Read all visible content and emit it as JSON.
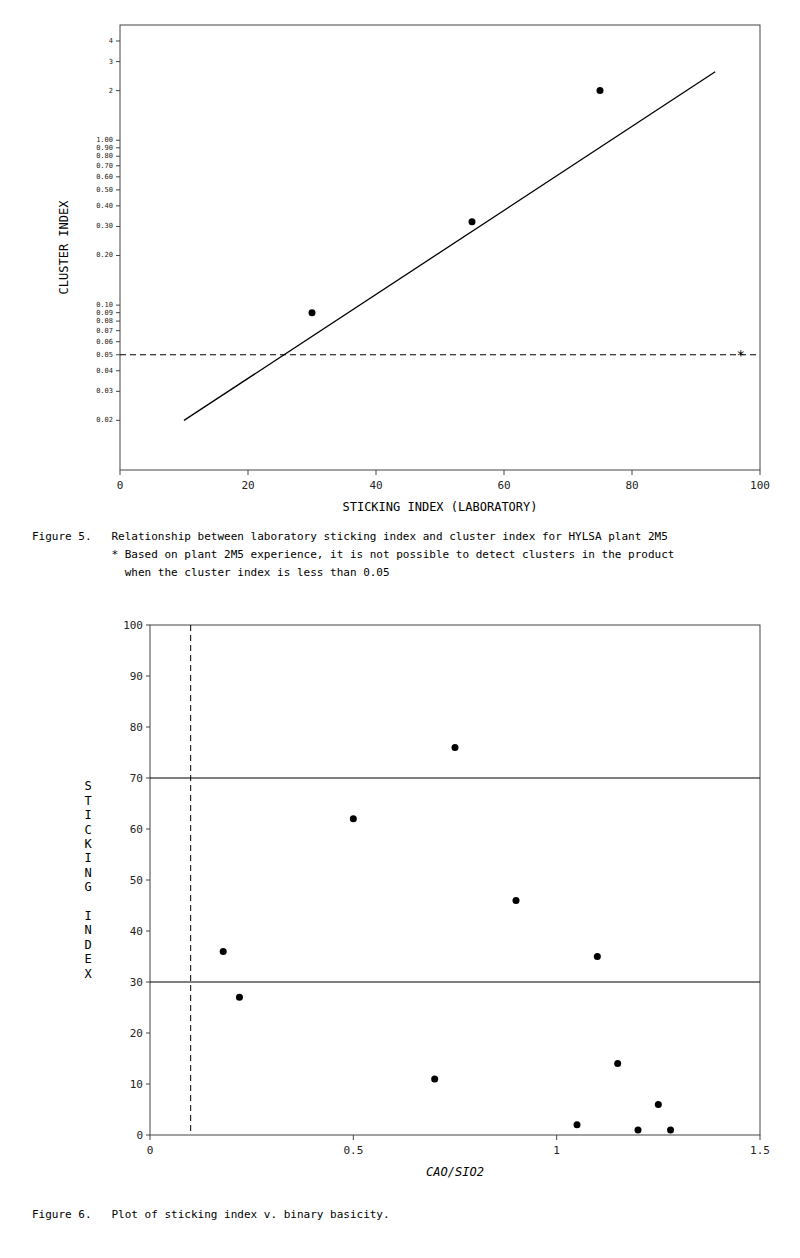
{
  "chart_data": [
    {
      "type": "scatter",
      "xlabel": "STICKING INDEX (LABORATORY)",
      "ylabel": "CLUSTER INDEX",
      "log": "y",
      "xlim": [
        0,
        100
      ],
      "ylim": [
        0.01,
        5.0
      ],
      "xticks": [
        0,
        20,
        40,
        60,
        80,
        100
      ],
      "yticks": [
        4,
        3,
        2,
        {
          "value": 1.0,
          "label": "1.00"
        },
        {
          "value": 0.9,
          "label": "0.90"
        },
        {
          "value": 0.8,
          "label": "0.80"
        },
        {
          "value": 0.7,
          "label": "0.70"
        },
        {
          "value": 0.6,
          "label": "0.60"
        },
        {
          "value": 0.5,
          "label": "0.50"
        },
        {
          "value": 0.4,
          "label": "0.40"
        },
        {
          "value": 0.3,
          "label": "0.30"
        },
        {
          "value": 0.2,
          "label": "0.20"
        },
        {
          "value": 0.1,
          "label": "0.10"
        },
        0.09,
        0.08,
        0.07,
        0.06,
        0.05,
        0.04,
        0.03,
        0.02
      ],
      "series": [
        {
          "type": "scatter",
          "color": "#000000",
          "x": [
            30,
            55,
            75
          ],
          "values": [
            0.09,
            0.32,
            2.0
          ]
        },
        {
          "type": "line",
          "color": "#000000",
          "x": [
            10,
            93
          ],
          "values": [
            0.02,
            2.6
          ]
        }
      ],
      "hlines": [
        {
          "value": 0.05,
          "line_style": "dashed",
          "color": "#000000"
        }
      ],
      "annotations": [
        {
          "text": "*",
          "x": 97,
          "y": 0.05
        }
      ],
      "caption": "Figure 5.   Relationship between laboratory sticking index and cluster index for HYLSA plant 2M5",
      "notes": [
        "            * Based on plant 2M5 experience, it is not possible to detect clusters in the product",
        "              when the cluster index is less than 0.05"
      ]
    },
    {
      "type": "scatter",
      "xlabel": "CAO/SIO2",
      "ylabel": "STICKING INDEX",
      "xlim": [
        0,
        1.5
      ],
      "ylim": [
        0,
        100
      ],
      "xticks": [
        0,
        0.5,
        {
          "value": 1.0,
          "label": "1"
        },
        1.5
      ],
      "yticks": [
        0,
        10,
        20,
        30,
        40,
        50,
        60,
        70,
        80,
        90,
        100
      ],
      "series": [
        {
          "type": "scatter",
          "color": "#000000",
          "x": [
            0.18,
            0.22,
            0.5,
            0.7,
            0.75,
            0.9,
            1.05,
            1.1,
            1.15,
            1.2,
            1.25,
            1.28
          ],
          "values": [
            36,
            27,
            62,
            11,
            76,
            46,
            2,
            35,
            14,
            1,
            6,
            1
          ]
        }
      ],
      "hlines": [
        {
          "value": 70,
          "line_style": "solid",
          "color": "#000000"
        },
        {
          "value": 30,
          "line_style": "solid",
          "color": "#000000"
        }
      ],
      "vlines": [
        {
          "value": 0.1,
          "line_style": "dashed",
          "color": "#000000"
        }
      ],
      "caption": "Figure 6.   Plot of sticking index v. binary basicity."
    }
  ]
}
